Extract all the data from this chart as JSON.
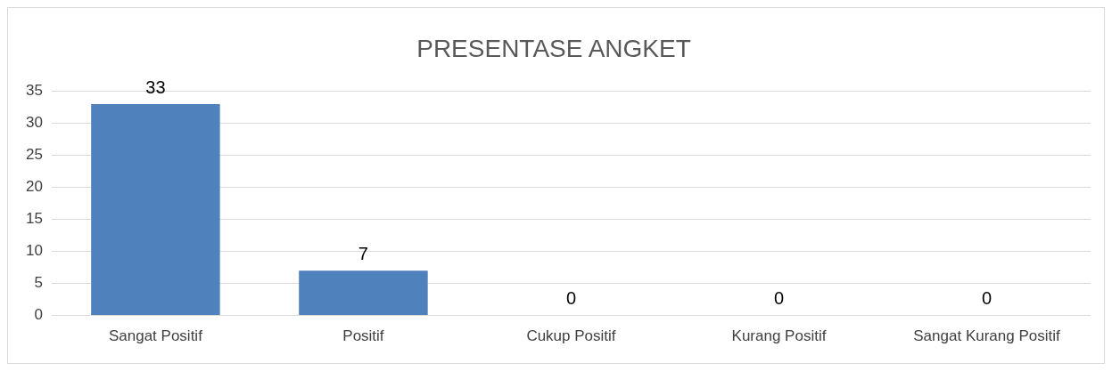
{
  "chart_data": {
    "type": "bar",
    "title": "PRESENTASE ANGKET",
    "categories": [
      "Sangat Positif",
      "Positif",
      "Cukup Positif",
      "Kurang Positif",
      "Sangat Kurang Positif"
    ],
    "values": [
      33,
      7,
      0,
      0,
      0
    ],
    "color": "#4f81bd",
    "ylim": [
      0,
      35
    ],
    "yticks": [
      0,
      5,
      10,
      15,
      20,
      25,
      30,
      35
    ],
    "grid": "y",
    "data_labels": true,
    "legend": false
  }
}
